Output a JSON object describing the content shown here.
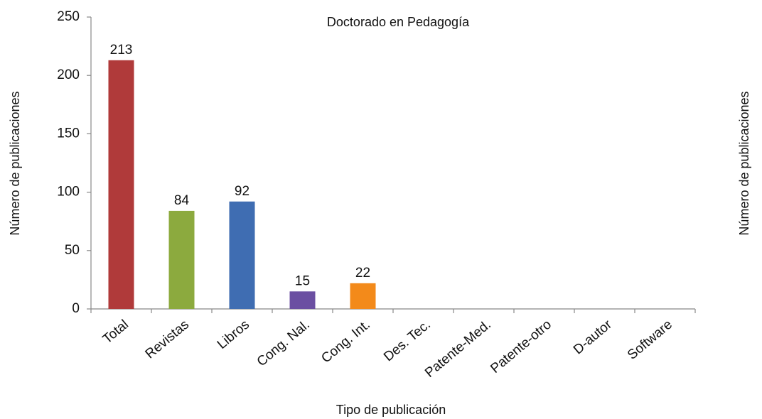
{
  "chart_data": {
    "type": "bar",
    "title": "Doctorado en Pedagogía",
    "x_label": "Tipo de publicación",
    "y_label": "Número de publicaciones",
    "y2_label": "Número de publicaciones",
    "categories": [
      "Total",
      "Revistas",
      "Libros",
      "Cong. Nal.",
      "Cong. Int.",
      "Des. Tec.",
      "Patente-Med.",
      "Patente-otro",
      "D-autor",
      "Software"
    ],
    "values": [
      213,
      84,
      92,
      15,
      22,
      null,
      null,
      null,
      null,
      null
    ],
    "colors": [
      "#b03a3a",
      "#8caa3e",
      "#3f6db2",
      "#6b4fa2",
      "#f38a1a",
      null,
      null,
      null,
      null,
      null
    ],
    "ylim": [
      0,
      250
    ],
    "yticks": [
      0,
      50,
      100,
      150,
      200,
      250
    ],
    "grid": false
  }
}
